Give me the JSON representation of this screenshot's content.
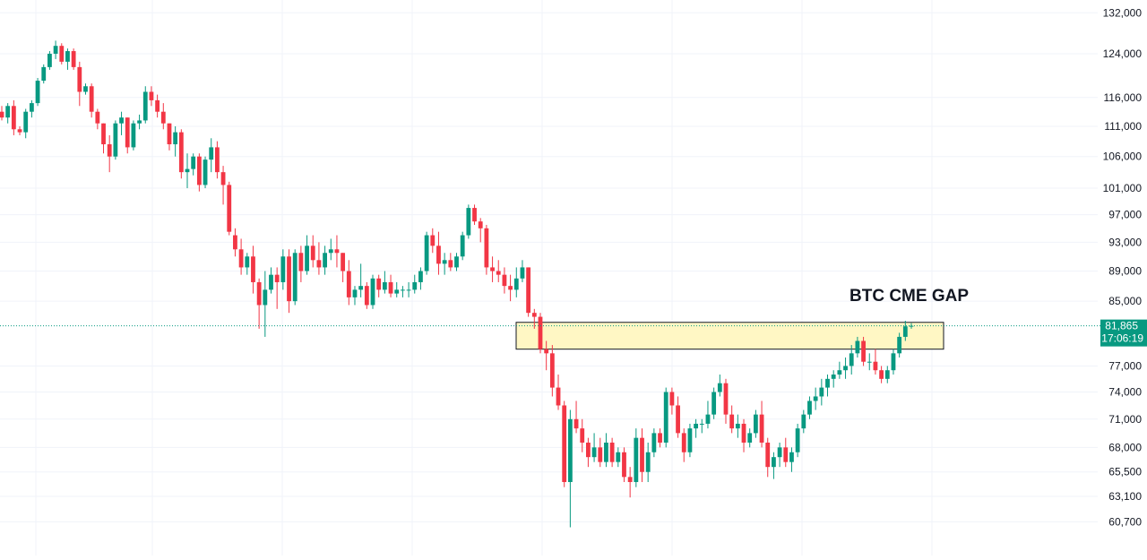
{
  "colors": {
    "up": "#089981",
    "down": "#f23645",
    "grid": "#f0f3fa",
    "gap_fill": "#fff7c4",
    "gap_stroke": "#131722",
    "last_price_bg": "#089981",
    "text": "#131722"
  },
  "chart_data": {
    "type": "candlestick",
    "title": "",
    "scale": "log",
    "ylim": [
      59500,
      133500
    ],
    "y_ticks": [
      "132,000",
      "124,000",
      "116,000",
      "111,000",
      "106,000",
      "101,000",
      "97,000",
      "93,000",
      "89,000",
      "85,000",
      "77,000",
      "74,000",
      "71,000",
      "68,000",
      "65,500",
      "63,100",
      "60,700"
    ],
    "grid": true,
    "last_price": {
      "price": "81,865",
      "countdown": "17:06:19",
      "value": 81865
    },
    "annotations": [
      {
        "text": "BTC CME GAP",
        "low": 79000,
        "high": 82300
      }
    ],
    "candles": [
      [
        113500,
        114500,
        112000,
        112500
      ],
      [
        112500,
        115000,
        111500,
        114500
      ],
      [
        114500,
        115500,
        109500,
        110500
      ],
      [
        110500,
        111000,
        109500,
        110000
      ],
      [
        110000,
        114000,
        109000,
        113500
      ],
      [
        113500,
        115500,
        112500,
        115000
      ],
      [
        115000,
        119500,
        114500,
        119000
      ],
      [
        119000,
        122000,
        118500,
        121500
      ],
      [
        121500,
        124500,
        121000,
        124000
      ],
      [
        124000,
        126500,
        123000,
        125500
      ],
      [
        125500,
        126000,
        122000,
        122500
      ],
      [
        122500,
        125000,
        121000,
        124500
      ],
      [
        124500,
        125000,
        121000,
        121500
      ],
      [
        121500,
        122500,
        114500,
        117000
      ],
      [
        117000,
        118500,
        116500,
        118000
      ],
      [
        118000,
        118500,
        112500,
        113500
      ],
      [
        113500,
        114000,
        110500,
        111500
      ],
      [
        111500,
        111500,
        106500,
        108000
      ],
      [
        108000,
        109500,
        103500,
        106000
      ],
      [
        106000,
        112000,
        105500,
        111500
      ],
      [
        111500,
        113500,
        109500,
        112500
      ],
      [
        112500,
        112500,
        106500,
        107500
      ],
      [
        107500,
        112000,
        107000,
        111500
      ],
      [
        111500,
        113000,
        110500,
        112000
      ],
      [
        112000,
        118000,
        111500,
        117000
      ],
      [
        117000,
        118000,
        114500,
        115500
      ],
      [
        115500,
        116500,
        112500,
        113500
      ],
      [
        113500,
        115000,
        110500,
        111500
      ],
      [
        111500,
        111500,
        107000,
        108000
      ],
      [
        108000,
        111000,
        106000,
        110000
      ],
      [
        110000,
        110500,
        102500,
        103500
      ],
      [
        103500,
        106500,
        101000,
        104000
      ],
      [
        104000,
        106500,
        103000,
        106000
      ],
      [
        106000,
        106500,
        100500,
        101500
      ],
      [
        101500,
        106000,
        101000,
        105500
      ],
      [
        105500,
        109000,
        103500,
        107500
      ],
      [
        107500,
        108500,
        102500,
        103500
      ],
      [
        103500,
        104500,
        98500,
        101500
      ],
      [
        101500,
        102000,
        94000,
        94500
      ],
      [
        94000,
        95000,
        91000,
        92000
      ],
      [
        92000,
        93500,
        88500,
        89500
      ],
      [
        89500,
        91500,
        88500,
        91000
      ],
      [
        91000,
        92500,
        86000,
        87500
      ],
      [
        87500,
        88000,
        81500,
        84500
      ],
      [
        84500,
        89000,
        80500,
        86500
      ],
      [
        86500,
        89500,
        86000,
        88500
      ],
      [
        88500,
        89500,
        84000,
        87500
      ],
      [
        87500,
        92000,
        86500,
        91000
      ],
      [
        91000,
        92000,
        83500,
        85000
      ],
      [
        85000,
        92000,
        84500,
        91500
      ],
      [
        91500,
        92500,
        87500,
        89000
      ],
      [
        89000,
        94000,
        88500,
        92500
      ],
      [
        92500,
        94000,
        89500,
        90500
      ],
      [
        90500,
        93000,
        88500,
        89500
      ],
      [
        89500,
        92500,
        88500,
        91500
      ],
      [
        91500,
        93500,
        90500,
        92000
      ],
      [
        92000,
        94000,
        89500,
        91500
      ],
      [
        91500,
        91500,
        87500,
        89000
      ],
      [
        89000,
        90500,
        84500,
        85500
      ],
      [
        85500,
        87000,
        84500,
        86500
      ],
      [
        86500,
        90000,
        85500,
        87000
      ],
      [
        87000,
        87500,
        84000,
        84500
      ],
      [
        84500,
        88500,
        84000,
        88000
      ],
      [
        88000,
        88500,
        85500,
        86500
      ],
      [
        86500,
        89000,
        86000,
        87500
      ],
      [
        87500,
        88500,
        85500,
        86000
      ],
      [
        86000,
        87500,
        85500,
        86500
      ],
      [
        86500,
        87000,
        85500,
        86500
      ],
      [
        86500,
        87500,
        85500,
        86500
      ],
      [
        86500,
        88500,
        86000,
        87500
      ],
      [
        87500,
        89500,
        86500,
        89000
      ],
      [
        89000,
        94500,
        88500,
        94000
      ],
      [
        94000,
        95000,
        91500,
        92500
      ],
      [
        92500,
        94500,
        88500,
        90000
      ],
      [
        90000,
        91500,
        88500,
        90500
      ],
      [
        90500,
        91500,
        89000,
        89500
      ],
      [
        89500,
        91500,
        89000,
        91000
      ],
      [
        91000,
        94500,
        90500,
        94000
      ],
      [
        94000,
        98500,
        93500,
        98000
      ],
      [
        98000,
        98500,
        95500,
        96000
      ],
      [
        96000,
        96500,
        93000,
        95000
      ],
      [
        95000,
        95500,
        88500,
        89500
      ],
      [
        89500,
        91000,
        87500,
        89000
      ],
      [
        89000,
        90500,
        87500,
        88500
      ],
      [
        88500,
        89500,
        86000,
        87000
      ],
      [
        87000,
        88500,
        85000,
        86500
      ],
      [
        86500,
        89500,
        85500,
        88000
      ],
      [
        88000,
        90500,
        87500,
        89500
      ],
      [
        89500,
        89500,
        83000,
        83500
      ],
      [
        83500,
        84000,
        81500,
        83000
      ],
      [
        83000,
        83500,
        78500,
        79000
      ],
      [
        79000,
        80000,
        76500,
        78500
      ],
      [
        78500,
        79500,
        73500,
        74500
      ],
      [
        74500,
        76000,
        72000,
        72500
      ],
      [
        72500,
        73000,
        64000,
        64500
      ],
      [
        64500,
        72000,
        60200,
        71000
      ],
      [
        71000,
        73000,
        69500,
        70000
      ],
      [
        70000,
        71000,
        67500,
        68500
      ],
      [
        68500,
        69000,
        66000,
        67000
      ],
      [
        67000,
        69500,
        66500,
        68000
      ],
      [
        68000,
        69000,
        66000,
        66500
      ],
      [
        66500,
        69500,
        66000,
        68500
      ],
      [
        68500,
        69000,
        66000,
        66500
      ],
      [
        66500,
        68000,
        66000,
        67500
      ],
      [
        67500,
        68000,
        64500,
        65000
      ],
      [
        65000,
        66000,
        63000,
        64500
      ],
      [
        64500,
        70000,
        64000,
        69000
      ],
      [
        69000,
        70000,
        64500,
        65500
      ],
      [
        65500,
        68500,
        64500,
        67500
      ],
      [
        67500,
        70000,
        67000,
        69500
      ],
      [
        69500,
        70000,
        68000,
        68500
      ],
      [
        68500,
        74500,
        68000,
        74000
      ],
      [
        74000,
        74500,
        71500,
        72500
      ],
      [
        72500,
        73500,
        69000,
        69500
      ],
      [
        69500,
        70000,
        66500,
        67500
      ],
      [
        67500,
        70500,
        67000,
        70000
      ],
      [
        70000,
        71000,
        69000,
        70500
      ],
      [
        70500,
        71000,
        69500,
        70500
      ],
      [
        70500,
        73000,
        70000,
        71500
      ],
      [
        71500,
        74500,
        71000,
        74000
      ],
      [
        74000,
        76000,
        73500,
        75000
      ],
      [
        75000,
        75500,
        70500,
        71500
      ],
      [
        71500,
        72500,
        69500,
        70000
      ],
      [
        70000,
        71500,
        69000,
        70500
      ],
      [
        70500,
        71000,
        67500,
        68500
      ],
      [
        68500,
        70000,
        68000,
        69500
      ],
      [
        69500,
        72000,
        69000,
        71500
      ],
      [
        71500,
        73000,
        68000,
        68500
      ],
      [
        68500,
        69000,
        65000,
        66000
      ],
      [
        66000,
        67500,
        64800,
        67000
      ],
      [
        67000,
        68500,
        66000,
        68000
      ],
      [
        68000,
        69000,
        66000,
        66500
      ],
      [
        66500,
        68000,
        65500,
        67500
      ],
      [
        67500,
        70500,
        67000,
        70000
      ],
      [
        70000,
        72000,
        69500,
        71500
      ],
      [
        71500,
        73500,
        71000,
        73000
      ],
      [
        73000,
        74500,
        72000,
        73500
      ],
      [
        73500,
        75500,
        72500,
        74500
      ],
      [
        74500,
        76000,
        73500,
        75500
      ],
      [
        75500,
        76500,
        74500,
        76000
      ],
      [
        76000,
        77500,
        75500,
        76500
      ],
      [
        76500,
        78000,
        75500,
        77000
      ],
      [
        77000,
        79500,
        76000,
        78500
      ],
      [
        78500,
        80500,
        78000,
        80000
      ],
      [
        80000,
        80500,
        77000,
        77500
      ],
      [
        77500,
        78500,
        76500,
        77500
      ],
      [
        77500,
        79000,
        76000,
        76500
      ],
      [
        76500,
        77000,
        75000,
        75500
      ],
      [
        75500,
        77000,
        75000,
        76500
      ],
      [
        76500,
        79000,
        76000,
        78500
      ],
      [
        78500,
        81000,
        78000,
        80500
      ],
      [
        80500,
        82500,
        80000,
        81800
      ],
      [
        81800,
        82200,
        81500,
        81865
      ]
    ]
  }
}
